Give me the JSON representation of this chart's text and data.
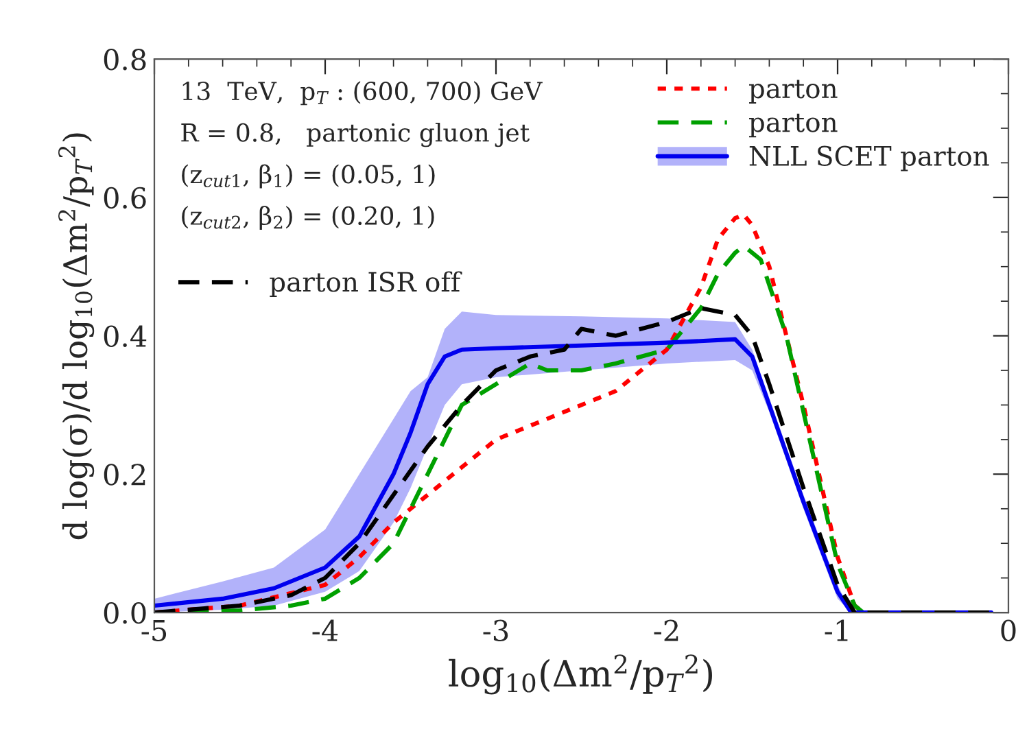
{
  "chart_data": {
    "type": "line",
    "xlabel": "log$_{10}$(Δm$^{2}$/p$_{T}$$^{2}$)",
    "ylabel": "d log(σ)/d log$_{10}$(Δm$^{2}$/p$_{T}$$^{2}$)",
    "xlim": [
      -5,
      0
    ],
    "xticks": [
      -5,
      -4,
      -3,
      -2,
      -1,
      0
    ],
    "ylim": [
      0,
      0.8
    ],
    "yticks": [
      {
        "value": 0,
        "label": "0.0"
      },
      0.2,
      0.4,
      0.6,
      0.8
    ],
    "grid": false,
    "legend": "top right",
    "annotations": [
      "13  TeV,  p$_{T}$ : (600, 700) GeV",
      "R = 0.8,   partonic gluon jet",
      "(z$_{cut1}$, β$_{1}$) = (0.05, 1)",
      "(z$_{cut2}$, β$_{2}$) = (0.20, 1)"
    ],
    "series": [
      {
        "name": "parton",
        "color": "#ff0000",
        "line_style": "dotted",
        "x": [
          -5,
          -4.5,
          -4,
          -3.8,
          -3.6,
          -3.4,
          -3.2,
          -3,
          -2.8,
          -2.6,
          -2.3,
          -2.0,
          -1.8,
          -1.7,
          -1.6,
          -1.55,
          -1.5,
          -1.4,
          -1.2,
          -1.0,
          -0.9,
          -0.85,
          -0.1
        ],
        "values": [
          0.0,
          0.01,
          0.04,
          0.08,
          0.13,
          0.17,
          0.21,
          0.25,
          0.27,
          0.29,
          0.32,
          0.38,
          0.47,
          0.54,
          0.57,
          0.575,
          0.56,
          0.5,
          0.3,
          0.08,
          0.01,
          0.0,
          0.0
        ]
      },
      {
        "name": "parton",
        "color": "#00a000",
        "line_style": "dashed",
        "x": [
          -5,
          -4.5,
          -4.2,
          -4,
          -3.8,
          -3.6,
          -3.4,
          -3.3,
          -3.2,
          -3.0,
          -2.8,
          -2.7,
          -2.5,
          -2.3,
          -2.0,
          -1.8,
          -1.7,
          -1.6,
          -1.55,
          -1.45,
          -1.3,
          -1.1,
          -1.0,
          -0.9,
          -0.85,
          -0.1
        ],
        "values": [
          0.0,
          0.003,
          0.01,
          0.02,
          0.05,
          0.1,
          0.2,
          0.25,
          0.3,
          0.33,
          0.36,
          0.35,
          0.35,
          0.36,
          0.38,
          0.44,
          0.49,
          0.52,
          0.53,
          0.51,
          0.4,
          0.18,
          0.07,
          0.01,
          0.0,
          0.0
        ]
      },
      {
        "name": "NLL SCET parton",
        "color": "#0000ee",
        "line_style": "solid",
        "x": [
          -5,
          -4.6,
          -4.3,
          -4,
          -3.8,
          -3.6,
          -3.5,
          -3.4,
          -3.3,
          -3.2,
          -3,
          -2.5,
          -2,
          -1.6,
          -1.5,
          -1.4,
          -1.2,
          -1.0,
          -0.92,
          -0.1
        ],
        "values": [
          0.01,
          0.02,
          0.035,
          0.065,
          0.11,
          0.2,
          0.26,
          0.33,
          0.37,
          0.38,
          0.382,
          0.386,
          0.39,
          0.395,
          0.37,
          0.3,
          0.16,
          0.03,
          0.0,
          0.0
        ],
        "lower": [
          0.0,
          0.004,
          0.01,
          0.03,
          0.06,
          0.13,
          0.18,
          0.24,
          0.3,
          0.33,
          0.34,
          0.35,
          0.36,
          0.365,
          0.35,
          0.29,
          0.15,
          0.02,
          0.0,
          0.0
        ],
        "upper": [
          0.02,
          0.045,
          0.065,
          0.12,
          0.2,
          0.28,
          0.32,
          0.34,
          0.41,
          0.435,
          0.43,
          0.428,
          0.425,
          0.42,
          0.38,
          0.31,
          0.17,
          0.04,
          0.0,
          0.0
        ]
      },
      {
        "name": "parton ISR off",
        "color": "#000000",
        "line_style": "dashed",
        "x": [
          -5,
          -4.5,
          -4.2,
          -4,
          -3.8,
          -3.6,
          -3.4,
          -3.2,
          -3.0,
          -2.8,
          -2.6,
          -2.5,
          -2.3,
          -2.0,
          -1.8,
          -1.6,
          -1.5,
          -1.4,
          -1.2,
          -1.0,
          -0.9,
          -0.1
        ],
        "values": [
          0.0,
          0.01,
          0.025,
          0.05,
          0.1,
          0.17,
          0.24,
          0.3,
          0.35,
          0.37,
          0.38,
          0.41,
          0.4,
          0.42,
          0.44,
          0.43,
          0.4,
          0.33,
          0.18,
          0.04,
          0.0,
          0.0
        ]
      }
    ]
  }
}
